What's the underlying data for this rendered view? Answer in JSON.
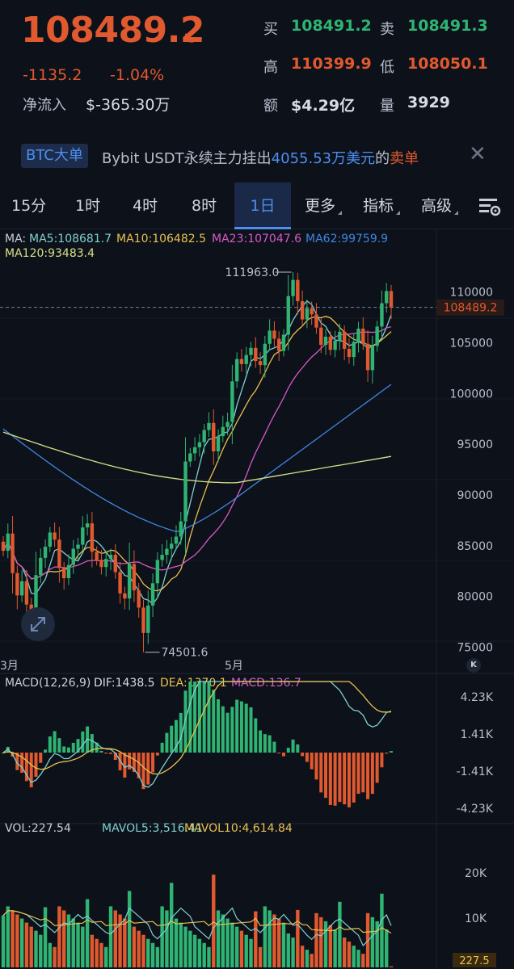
{
  "header": {
    "last_price": "108489.2",
    "change_abs": "-1135.2",
    "change_pct": "-1.04%",
    "net_inflow_label": "净流入",
    "net_inflow_value": "$-365.30万",
    "bid_label": "买",
    "bid_value": "108491.2",
    "ask_label": "卖",
    "ask_value": "108491.3",
    "high_label": "高",
    "high_value": "110399.9",
    "low_label": "低",
    "low_value": "108050.1",
    "amount_label": "额",
    "amount_value": "$4.29亿",
    "volume_label": "量",
    "volume_value": "3929"
  },
  "banner": {
    "tag": "BTC大单",
    "text_prefix": "Bybit USDT永续主力挂出",
    "text_amount": "4055.53万美元",
    "text_mid": "的",
    "text_side": "卖单"
  },
  "tabs": [
    {
      "label": "15分",
      "active": false
    },
    {
      "label": "1时",
      "active": false
    },
    {
      "label": "4时",
      "active": false
    },
    {
      "label": "8时",
      "active": false
    },
    {
      "label": "1日",
      "active": true
    },
    {
      "label": "更多",
      "active": false
    },
    {
      "label": "指标",
      "active": false
    },
    {
      "label": "高级",
      "active": false
    }
  ],
  "icons": {
    "settings": "chart-settings-icon",
    "close": "close-icon",
    "expand": "expand-icon",
    "arrow": "down-arrow-icon"
  },
  "colors": {
    "up": "#2fb473",
    "down": "#e0592f",
    "ma5": "#7fd0d0",
    "ma10": "#e8c14f",
    "ma23": "#d85ac8",
    "ma62": "#3f86e0",
    "ma120": "#d6e08a"
  },
  "chart_data": [
    {
      "type": "candlestick",
      "legend": "MA: MA5:108681.7 MA10:106482.5 MA23:107047.6 MA62:99759.9 MA120:93483.4",
      "ma_legend": [
        {
          "name": "MA:",
          "value": ""
        },
        {
          "name": "MA5:",
          "value": "108681.7"
        },
        {
          "name": "MA10:",
          "value": "106482.5"
        },
        {
          "name": "MA23:",
          "value": "107047.6"
        },
        {
          "name": "MA62:",
          "value": "99759.9"
        },
        {
          "name": "MA120:",
          "value": "93483.4"
        }
      ],
      "y_ticks": [
        "110000",
        "105000",
        "100000",
        "95000",
        "90000",
        "85000",
        "80000",
        "75000"
      ],
      "x_ticks": [
        "3月",
        "5月"
      ],
      "ylim": [
        74000,
        113000
      ],
      "current_price_label": "108489.2",
      "high_marker": "111963.0",
      "low_marker": "74501.6",
      "close_series": [
        84500,
        86200,
        82300,
        80100,
        81500,
        79200,
        78400,
        82100,
        83800,
        84900,
        86300,
        85600,
        82800,
        81800,
        83100,
        84700,
        85100,
        86800,
        87200,
        84400,
        83600,
        82900,
        83700,
        84100,
        82400,
        80300,
        79800,
        83200,
        80600,
        78900,
        76400,
        79100,
        81300,
        83600,
        84100,
        84700,
        85200,
        85900,
        87400,
        93300,
        94100,
        94700,
        95200,
        96400,
        97100,
        94300,
        95800,
        96700,
        97200,
        101200,
        103400,
        102900,
        103800,
        104500,
        103200,
        102800,
        104900,
        106200,
        105400,
        104200,
        105800,
        109600,
        111200,
        109100,
        107300,
        108400,
        107800,
        106500,
        104800,
        105600,
        104300,
        105200,
        106100,
        104400,
        103600,
        105100,
        106400,
        104900,
        102300,
        104700,
        106600,
        108900,
        110100,
        108489
      ]
    },
    {
      "type": "line",
      "name": "MACD(12,26,9)",
      "legend": [
        {
          "name": "MACD(12,26,9)",
          "value": ""
        },
        {
          "name": "DIF:",
          "value": "1438.5"
        },
        {
          "name": "DEA:",
          "value": "1370.1"
        },
        {
          "name": "MACD:",
          "value": "136.7"
        }
      ],
      "y_ticks": [
        "4.23K",
        "1.41K",
        "-1.41K",
        "-4.23K"
      ]
    },
    {
      "type": "bar",
      "name": "VOL",
      "legend": [
        {
          "name": "VOL:",
          "value": "227.54"
        },
        {
          "name": "MAVOL5:",
          "value": "3,516.41"
        },
        {
          "name": "MAVOL10:",
          "value": "4,614.84"
        }
      ],
      "y_ticks": [
        "20K",
        "10K"
      ],
      "current_label": "227.5"
    }
  ]
}
